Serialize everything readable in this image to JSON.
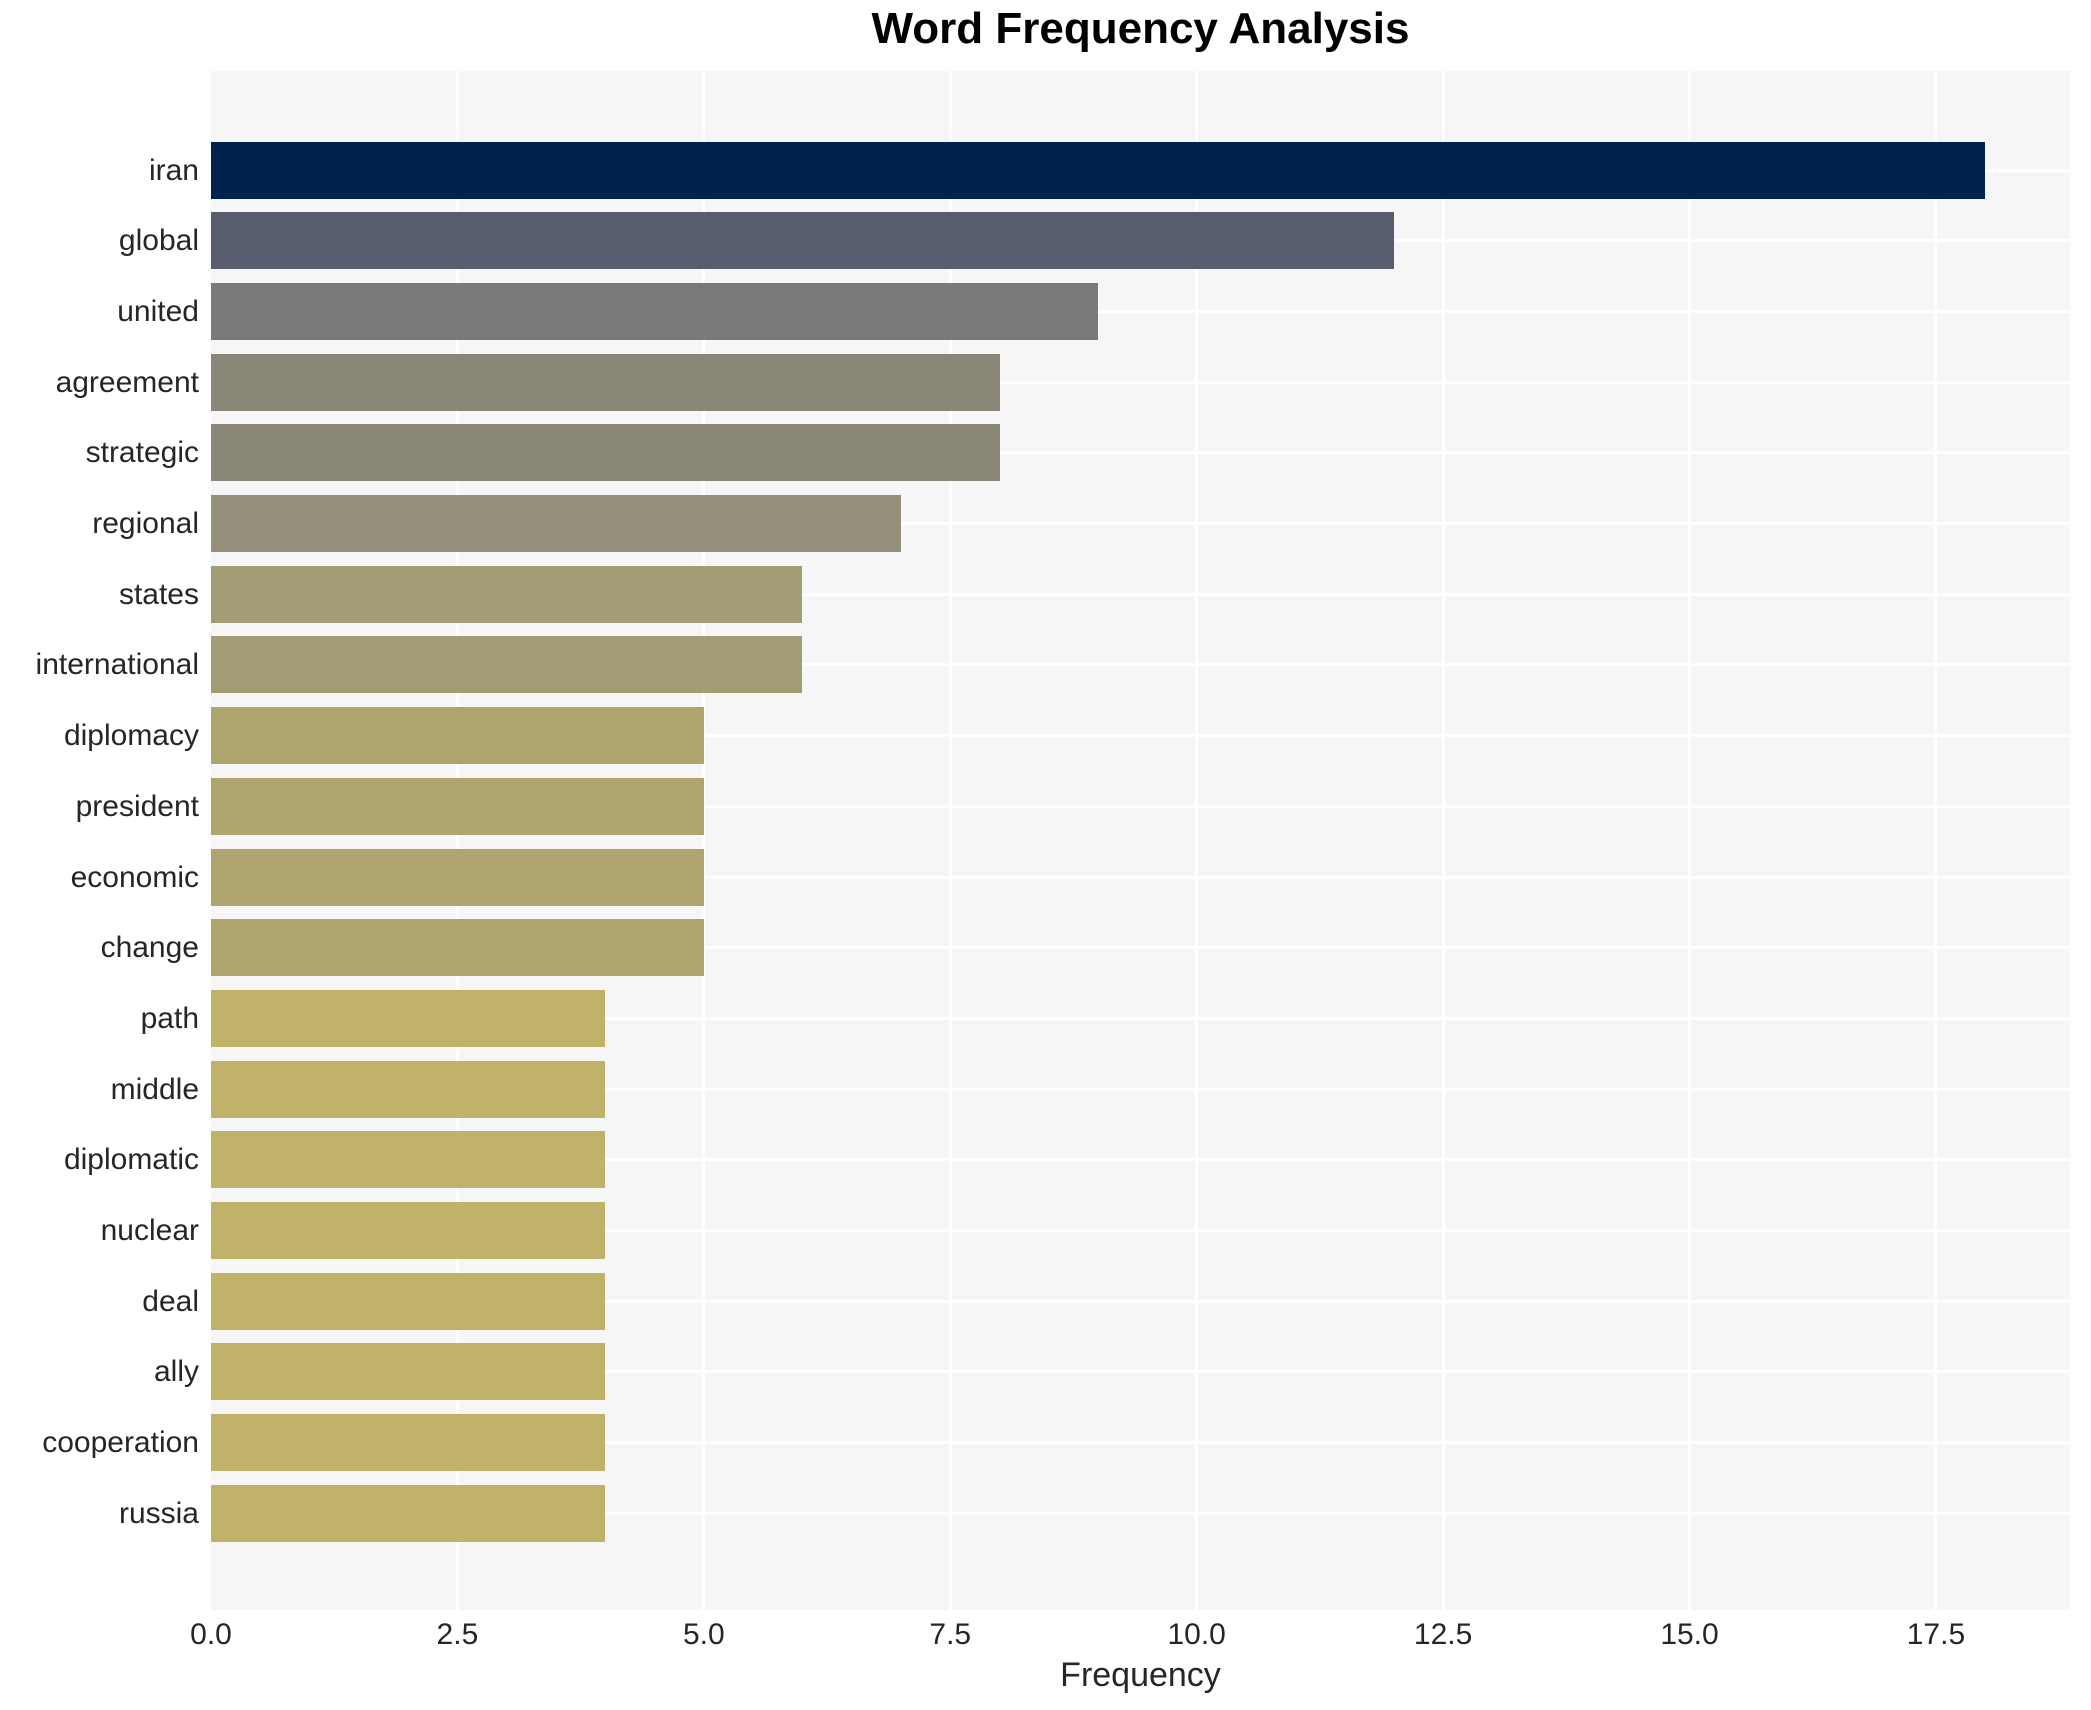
{
  "chart_data": {
    "type": "bar",
    "orientation": "horizontal",
    "title": "Word Frequency Analysis",
    "xlabel": "Frequency",
    "ylabel": "",
    "categories": [
      "iran",
      "global",
      "united",
      "agreement",
      "strategic",
      "regional",
      "states",
      "international",
      "diplomacy",
      "president",
      "economic",
      "change",
      "path",
      "middle",
      "diplomatic",
      "nuclear",
      "deal",
      "ally",
      "cooperation",
      "russia"
    ],
    "values": [
      18,
      12,
      9,
      8,
      8,
      7,
      6,
      6,
      5,
      5,
      5,
      5,
      4,
      4,
      4,
      4,
      4,
      4,
      4,
      4
    ],
    "bar_colors": [
      "#00224e",
      "#575d6d",
      "#7b7a78",
      "#8a8779",
      "#8a8779",
      "#938f7a",
      "#a39d75",
      "#a39d75",
      "#aea46e",
      "#aea46e",
      "#aea46e",
      "#aea46e",
      "#c0b268",
      "#c0b268",
      "#c0b268",
      "#c0b268",
      "#c0b268",
      "#c0b268",
      "#c0b268",
      "#c0b268"
    ],
    "xlim": [
      0,
      18.86
    ],
    "xticks": [
      0,
      2.5,
      5,
      7.5,
      10,
      12.5,
      15,
      17.5
    ],
    "xtick_labels": [
      "0.0",
      "2.5",
      "5.0",
      "7.5",
      "10.0",
      "12.5",
      "15.0",
      "17.5"
    ],
    "grid": true,
    "grid_axis": "both",
    "legend": false,
    "colors": {
      "page_bg": "#ffffff",
      "plot_bg": "#f6f6f7",
      "grid": "#ffffff",
      "tick_text": "#262626",
      "title_text": "#000000"
    }
  }
}
